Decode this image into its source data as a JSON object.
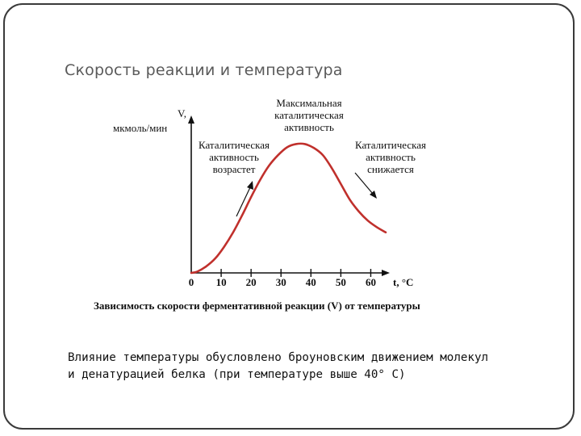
{
  "slide": {
    "title": "Скорость реакции и температура",
    "body_lines": [
      "Влияние температуры обусловлено броуновским движением молекул",
      "и денатурацией белка (при температуре выше 40° С)"
    ]
  },
  "chart_data": {
    "type": "line",
    "title": "",
    "caption": "Зависимость скорости ферментативной реакции (V) от температуры",
    "ylabel_lines": [
      "V,",
      "мкмоль/мин"
    ],
    "xlabel": "t, °С",
    "x_ticks": [
      0,
      10,
      20,
      30,
      40,
      50,
      60
    ],
    "xlim": [
      0,
      65
    ],
    "ylim": [
      0,
      1
    ],
    "grid": false,
    "series": [
      {
        "color": "#c0302c",
        "x": [
          0,
          2,
          5,
          8,
          11,
          14,
          17,
          20,
          23,
          26,
          29,
          32,
          35,
          38,
          41,
          44,
          47,
          50,
          53,
          56,
          59,
          62,
          65
        ],
        "y": [
          0.0,
          0.01,
          0.05,
          0.11,
          0.2,
          0.31,
          0.44,
          0.58,
          0.71,
          0.82,
          0.9,
          0.96,
          0.985,
          0.985,
          0.955,
          0.9,
          0.8,
          0.68,
          0.56,
          0.47,
          0.4,
          0.35,
          0.31
        ]
      }
    ],
    "annotations": [
      {
        "lines": [
          "Максимальная",
          "каталитическая",
          "активность"
        ],
        "bold": false
      },
      {
        "lines": [
          "Каталитическая",
          "активность",
          "возрастет"
        ],
        "bold": false,
        "arrow": "up"
      },
      {
        "lines": [
          "Каталитическая",
          "активность",
          "снижается"
        ],
        "bold": false,
        "arrow": "down"
      }
    ]
  }
}
